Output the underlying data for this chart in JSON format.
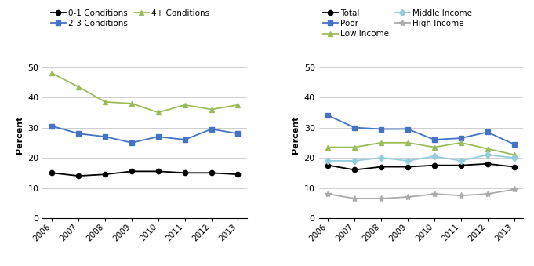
{
  "years": [
    2006,
    2007,
    2008,
    2009,
    2010,
    2011,
    2012,
    2013
  ],
  "left": {
    "series": [
      {
        "label": "0-1 Conditions",
        "color": "#000000",
        "marker": "o",
        "values": [
          15,
          14,
          14.5,
          15.5,
          15.5,
          15,
          15,
          14.5
        ]
      },
      {
        "label": "2-3 Conditions",
        "color": "#4472C4",
        "marker": "s",
        "values": [
          30.5,
          28,
          27,
          25,
          27,
          26,
          29.5,
          28
        ]
      },
      {
        "label": "4+ Conditions",
        "color": "#9BBB59",
        "marker": "^",
        "values": [
          48,
          43.5,
          38.5,
          38,
          35,
          37.5,
          36,
          37.5
        ]
      }
    ],
    "ylim": [
      0,
      55
    ],
    "yticks": [
      0,
      10,
      20,
      30,
      40,
      50
    ],
    "ylabel": "Percent",
    "legend_order": [
      0,
      1,
      2
    ],
    "legend_ncol": 2
  },
  "right": {
    "series": [
      {
        "label": "Total",
        "color": "#000000",
        "marker": "o",
        "values": [
          17.5,
          16,
          17,
          17,
          17.5,
          17.5,
          18,
          17
        ]
      },
      {
        "label": "Poor",
        "color": "#4472C4",
        "marker": "s",
        "values": [
          34,
          30,
          29.5,
          29.5,
          26,
          26.5,
          28.5,
          24.5
        ]
      },
      {
        "label": "Low Income",
        "color": "#9BBB59",
        "marker": "^",
        "values": [
          23.5,
          23.5,
          25,
          25,
          23.5,
          25,
          23,
          21
        ]
      },
      {
        "label": "Middle Income",
        "color": "#92CDDC",
        "marker": "D",
        "values": [
          19,
          19,
          20,
          19,
          20.5,
          19,
          21,
          20
        ]
      },
      {
        "label": "High Income",
        "color": "#AAAAAA",
        "marker": "*",
        "values": [
          8,
          6.5,
          6.5,
          7,
          8,
          7.5,
          8,
          9.5
        ]
      }
    ],
    "ylim": [
      0,
      55
    ],
    "yticks": [
      0,
      10,
      20,
      30,
      40,
      50
    ],
    "ylabel": "Percent",
    "legend_ncol": 2
  },
  "fig_width": 6.81,
  "fig_height": 3.39,
  "dpi": 100
}
